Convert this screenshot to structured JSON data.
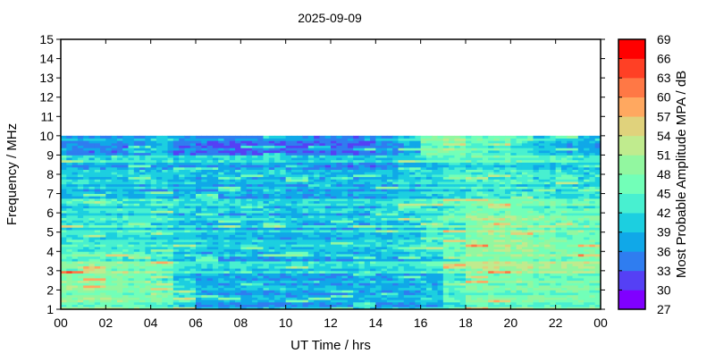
{
  "chart_data": {
    "type": "heatmap",
    "title": "2025-09-09",
    "xlabel": "UT Time / hrs",
    "ylabel": "Frequency / MHz",
    "xlim": [
      0,
      24
    ],
    "ylim": [
      1,
      15
    ],
    "x_tick_labels": [
      "00",
      "02",
      "04",
      "06",
      "08",
      "10",
      "12",
      "14",
      "16",
      "18",
      "20",
      "22",
      "00"
    ],
    "y_tick_labels": [
      "1",
      "2",
      "3",
      "4",
      "5",
      "6",
      "7",
      "8",
      "9",
      "10",
      "11",
      "12",
      "13",
      "14",
      "15"
    ],
    "data_freq_range_mhz": [
      1,
      10
    ],
    "time_bins_hrs": [
      0,
      1,
      2,
      3,
      4,
      5,
      6,
      7,
      8,
      9,
      10,
      11,
      12,
      13,
      14,
      15,
      16,
      17,
      18,
      19,
      20,
      21,
      22,
      23
    ],
    "freq_bands_mhz": [
      "1-2",
      "2-3",
      "3-4",
      "4-5",
      "5-6",
      "6-7",
      "7-8",
      "8-9",
      "9-10"
    ],
    "values_db": [
      [
        48,
        48,
        48,
        47,
        46,
        43,
        38,
        38,
        38,
        38,
        38,
        38,
        38,
        38,
        38,
        38,
        40,
        44,
        47,
        47,
        47,
        47,
        47,
        47
      ],
      [
        51,
        51,
        50,
        49,
        47,
        43,
        40,
        40,
        40,
        40,
        40,
        40,
        40,
        40,
        40,
        40,
        41,
        45,
        49,
        49,
        49,
        49,
        49,
        49
      ],
      [
        47,
        47,
        46,
        46,
        45,
        42,
        40,
        40,
        40,
        40,
        40,
        40,
        40,
        40,
        40,
        41,
        42,
        46,
        50,
        50,
        50,
        49,
        49,
        49
      ],
      [
        43,
        43,
        43,
        42,
        42,
        41,
        40,
        40,
        40,
        40,
        40,
        40,
        40,
        40,
        41,
        41,
        43,
        46,
        50,
        51,
        50,
        48,
        47,
        47
      ],
      [
        42,
        42,
        42,
        42,
        41,
        40,
        39,
        39,
        39,
        39,
        39,
        39,
        39,
        39,
        40,
        41,
        43,
        45,
        49,
        49,
        48,
        47,
        46,
        46
      ],
      [
        41,
        41,
        41,
        41,
        41,
        40,
        39,
        39,
        39,
        39,
        39,
        39,
        39,
        39,
        40,
        41,
        42,
        44,
        45,
        45,
        45,
        44,
        44,
        44
      ],
      [
        40,
        40,
        40,
        40,
        40,
        39,
        38,
        38,
        38,
        38,
        38,
        38,
        38,
        38,
        39,
        40,
        41,
        42,
        43,
        43,
        43,
        42,
        42,
        42
      ],
      [
        40,
        40,
        40,
        40,
        40,
        39,
        39,
        40,
        40,
        40,
        38,
        38,
        38,
        38,
        39,
        40,
        42,
        43,
        43,
        43,
        43,
        42,
        42,
        41
      ],
      [
        37,
        37,
        37,
        38,
        40,
        36,
        35,
        35,
        35,
        35,
        35,
        35,
        35,
        35,
        37,
        40,
        48,
        49,
        47,
        46,
        44,
        41,
        40,
        39
      ]
    ],
    "colorbar": {
      "label": "Most Probable Amplitude MPA / dB",
      "range": [
        27,
        69
      ],
      "tick_labels": [
        "27",
        "30",
        "33",
        "36",
        "39",
        "42",
        "45",
        "48",
        "51",
        "54",
        "57",
        "60",
        "63",
        "66",
        "69"
      ],
      "colors": [
        "#8000ff",
        "#5540f5",
        "#2f7df0",
        "#10a8e8",
        "#1ccfe0",
        "#48f0d0",
        "#72ffb8",
        "#92f7a0",
        "#c0eb8e",
        "#e0d27c",
        "#ffa860",
        "#ff7845",
        "#ff4025",
        "#ff0000"
      ]
    },
    "grid": false,
    "legend": "colorbar-right"
  }
}
